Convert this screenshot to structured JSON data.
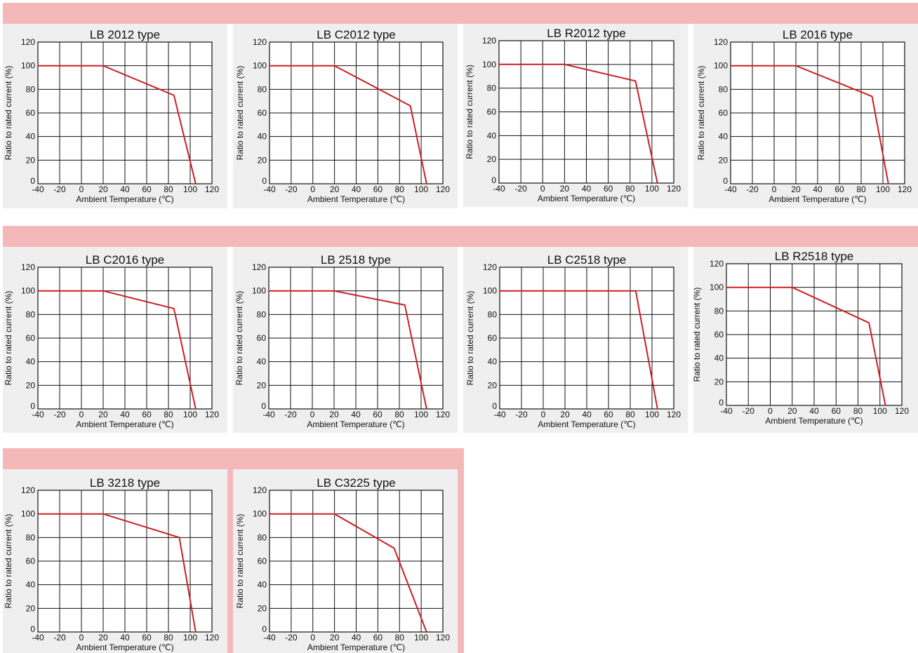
{
  "colors": {
    "band": "#f4b8b9",
    "panel": "#efefef",
    "curve": "#cc1f24"
  },
  "chart_data": [
    {
      "type": "line",
      "title": "LB 2012 type",
      "xlabel": "Ambient Temperature (℃)",
      "ylabel": "Ratio to rated current (%)",
      "xlim": [
        -40,
        120
      ],
      "ylim": [
        0,
        120
      ],
      "xticks": [
        "-40",
        "-20",
        "0",
        "20",
        "40",
        "60",
        "80",
        "100",
        "120"
      ],
      "yticks": [
        "0",
        "20",
        "40",
        "60",
        "80",
        "100",
        "120"
      ],
      "grid": true,
      "series": [
        {
          "x": [
            -40,
            20,
            85,
            105
          ],
          "y": [
            100,
            100,
            75,
            0
          ]
        }
      ]
    },
    {
      "type": "line",
      "title": "LB C2012 type",
      "xlabel": "Ambient Temperature (℃)",
      "ylabel": "Ratio to rated current (%)",
      "xlim": [
        -40,
        120
      ],
      "ylim": [
        0,
        120
      ],
      "xticks": [
        "-40",
        "-20",
        "0",
        "20",
        "40",
        "60",
        "80",
        "100",
        "120"
      ],
      "yticks": [
        "0",
        "20",
        "40",
        "60",
        "80",
        "100",
        "120"
      ],
      "grid": true,
      "series": [
        {
          "x": [
            -40,
            20,
            90,
            105
          ],
          "y": [
            100,
            100,
            66,
            0
          ]
        }
      ]
    },
    {
      "type": "line",
      "title": "LB R2012 type",
      "xlabel": "Ambient Temperature (℃)",
      "ylabel": "Ratio to rated current (%)",
      "xlim": [
        -40,
        120
      ],
      "ylim": [
        0,
        120
      ],
      "xticks": [
        "-40",
        "-20",
        "0",
        "20",
        "40",
        "60",
        "80",
        "100",
        "120"
      ],
      "yticks": [
        "0",
        "20",
        "40",
        "60",
        "80",
        "100",
        "120"
      ],
      "grid": true,
      "series": [
        {
          "x": [
            -40,
            20,
            85,
            105
          ],
          "y": [
            100,
            100,
            86,
            0
          ]
        }
      ]
    },
    {
      "type": "line",
      "title": "LB 2016 type",
      "xlabel": "Ambient Temperature (℃)",
      "ylabel": "Ratio to rated current (%)",
      "xlim": [
        -40,
        120
      ],
      "ylim": [
        0,
        120
      ],
      "xticks": [
        "-40",
        "-20",
        "0",
        "20",
        "40",
        "60",
        "80",
        "100",
        "120"
      ],
      "yticks": [
        "0",
        "20",
        "40",
        "60",
        "80",
        "100",
        "120"
      ],
      "grid": true,
      "series": [
        {
          "x": [
            -40,
            20,
            90,
            105
          ],
          "y": [
            100,
            100,
            74,
            0
          ]
        }
      ]
    },
    {
      "type": "line",
      "title": "LB C2016 type",
      "xlabel": "Ambient Temperature (℃)",
      "ylabel": "Ratio to rated current (%)",
      "xlim": [
        -40,
        120
      ],
      "ylim": [
        0,
        120
      ],
      "xticks": [
        "-40",
        "-20",
        "0",
        "20",
        "40",
        "60",
        "80",
        "100",
        "120"
      ],
      "yticks": [
        "0",
        "20",
        "40",
        "60",
        "80",
        "100",
        "120"
      ],
      "grid": true,
      "series": [
        {
          "x": [
            -40,
            20,
            85,
            105
          ],
          "y": [
            100,
            100,
            85,
            0
          ]
        }
      ]
    },
    {
      "type": "line",
      "title": "LB 2518 type",
      "xlabel": "Ambient Temperature (℃)",
      "ylabel": "Ratio to rated current (%)",
      "xlim": [
        -40,
        120
      ],
      "ylim": [
        0,
        120
      ],
      "xticks": [
        "-40",
        "-20",
        "0",
        "20",
        "40",
        "60",
        "80",
        "100",
        "120"
      ],
      "yticks": [
        "0",
        "20",
        "40",
        "60",
        "80",
        "100",
        "120"
      ],
      "grid": true,
      "series": [
        {
          "x": [
            -40,
            20,
            85,
            105
          ],
          "y": [
            100,
            100,
            88,
            0
          ]
        }
      ]
    },
    {
      "type": "line",
      "title": "LB C2518 type",
      "xlabel": "Ambient Temperature (℃)",
      "ylabel": "Ratio to rated current (%)",
      "xlim": [
        -40,
        120
      ],
      "ylim": [
        0,
        120
      ],
      "xticks": [
        "-40",
        "-20",
        "0",
        "20",
        "40",
        "60",
        "80",
        "100",
        "120"
      ],
      "yticks": [
        "0",
        "20",
        "40",
        "60",
        "80",
        "100",
        "120"
      ],
      "grid": true,
      "series": [
        {
          "x": [
            -40,
            85,
            105
          ],
          "y": [
            100,
            100,
            0
          ]
        }
      ]
    },
    {
      "type": "line",
      "title": "LB R2518 type",
      "xlabel": "Ambient Temperature (℃)",
      "ylabel": "Ratio to rated current (%)",
      "xlim": [
        -40,
        120
      ],
      "ylim": [
        0,
        120
      ],
      "xticks": [
        "-40",
        "-20",
        "0",
        "20",
        "40",
        "60",
        "80",
        "100",
        "120"
      ],
      "yticks": [
        "0",
        "20",
        "40",
        "60",
        "80",
        "100",
        "120"
      ],
      "grid": true,
      "series": [
        {
          "x": [
            -40,
            20,
            90,
            105
          ],
          "y": [
            100,
            100,
            70,
            0
          ]
        }
      ]
    },
    {
      "type": "line",
      "title": "LB 3218 type",
      "xlabel": "Ambient Temperature (℃)",
      "ylabel": "Ratio to rated current (%)",
      "xlim": [
        -40,
        120
      ],
      "ylim": [
        0,
        120
      ],
      "xticks": [
        "-40",
        "-20",
        "0",
        "20",
        "40",
        "60",
        "80",
        "100",
        "120"
      ],
      "yticks": [
        "0",
        "20",
        "40",
        "60",
        "80",
        "100",
        "120"
      ],
      "grid": true,
      "series": [
        {
          "x": [
            -40,
            20,
            90,
            105
          ],
          "y": [
            100,
            100,
            80,
            0
          ]
        }
      ]
    },
    {
      "type": "line",
      "title": "LB C3225 type",
      "xlabel": "Ambient Temperature (℃)",
      "ylabel": "Ratio to rated current (%)",
      "xlim": [
        -40,
        120
      ],
      "ylim": [
        0,
        120
      ],
      "xticks": [
        "-40",
        "-20",
        "0",
        "20",
        "40",
        "60",
        "80",
        "100",
        "120"
      ],
      "yticks": [
        "0",
        "20",
        "40",
        "60",
        "80",
        "100",
        "120"
      ],
      "grid": true,
      "series": [
        {
          "x": [
            -40,
            20,
            75,
            105
          ],
          "y": [
            100,
            100,
            71,
            0
          ]
        }
      ]
    }
  ]
}
